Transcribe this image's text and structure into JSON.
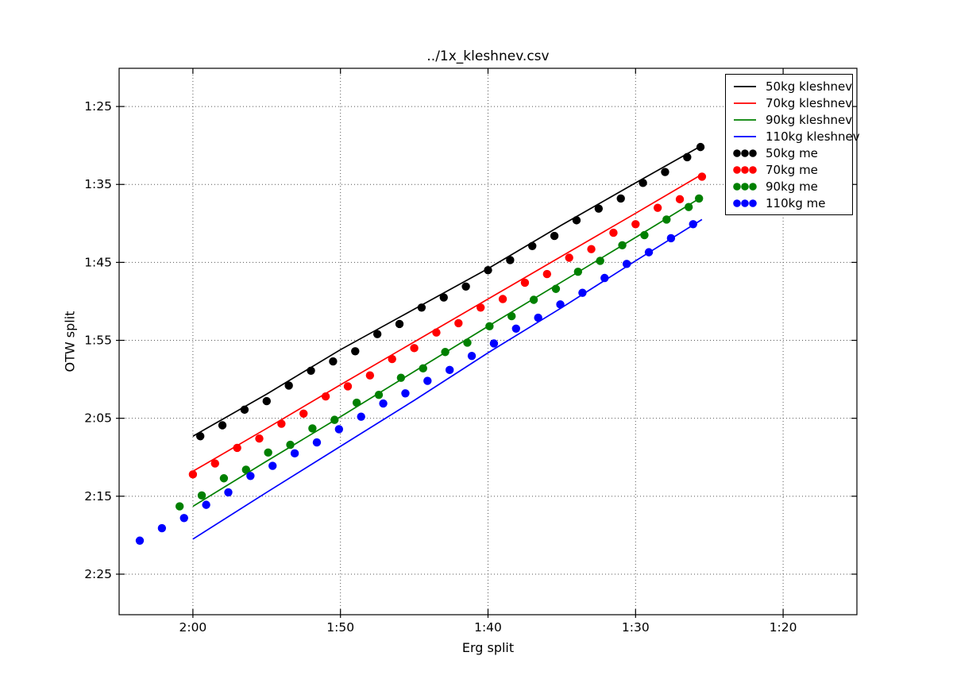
{
  "chart_data": {
    "type": "line+scatter",
    "title": "../1x_kleshnev.csv",
    "xlabel": "Erg split",
    "ylabel": "OTW split",
    "grid": "dotted",
    "legend_position": "upper right",
    "x_axis": {
      "reversed": true,
      "min_seconds": 125,
      "max_seconds": 75,
      "ticks": [
        {
          "label": "2:00",
          "seconds": 120
        },
        {
          "label": "1:50",
          "seconds": 110
        },
        {
          "label": "1:40",
          "seconds": 100
        },
        {
          "label": "1:30",
          "seconds": 90
        },
        {
          "label": "1:20",
          "seconds": 80
        }
      ]
    },
    "y_axis": {
      "increases_downward": true,
      "min_seconds": 80.1,
      "max_seconds": 150.2,
      "ticks": [
        {
          "label": "1:25",
          "seconds": 85
        },
        {
          "label": "1:35",
          "seconds": 95
        },
        {
          "label": "1:45",
          "seconds": 105
        },
        {
          "label": "1:55",
          "seconds": 115
        },
        {
          "label": "2:05",
          "seconds": 125
        },
        {
          "label": "2:15",
          "seconds": 135
        },
        {
          "label": "2:25",
          "seconds": 145
        }
      ]
    },
    "series": [
      {
        "name": "50kg kleshnev",
        "style": "line",
        "color": "#000000",
        "points": [
          [
            120,
            127.3
          ],
          [
            115,
            121.9
          ],
          [
            110,
            116.2
          ],
          [
            105,
            111.0
          ],
          [
            100,
            105.8
          ],
          [
            95,
            100.2
          ],
          [
            90,
            94.8
          ],
          [
            85.5,
            90.0
          ]
        ]
      },
      {
        "name": "70kg kleshnev",
        "style": "line",
        "color": "#ff0000",
        "points": [
          [
            120,
            131.8
          ],
          [
            115,
            126.3
          ],
          [
            110,
            120.7
          ],
          [
            105,
            115.2
          ],
          [
            100,
            109.7
          ],
          [
            95,
            104.2
          ],
          [
            90,
            98.7
          ],
          [
            85.5,
            93.7
          ]
        ]
      },
      {
        "name": "90kg kleshnev",
        "style": "line",
        "color": "#008000",
        "points": [
          [
            120,
            136.3
          ],
          [
            115,
            130.5
          ],
          [
            110,
            124.8
          ],
          [
            105,
            119.0
          ],
          [
            100,
            113.2
          ],
          [
            95,
            107.5
          ],
          [
            90,
            101.8
          ],
          [
            85.5,
            96.6
          ]
        ]
      },
      {
        "name": "110kg kleshnev",
        "style": "line",
        "color": "#0000ff",
        "points": [
          [
            120,
            140.5
          ],
          [
            115,
            134.5
          ],
          [
            110,
            128.6
          ],
          [
            105,
            122.7
          ],
          [
            100,
            116.6
          ],
          [
            95,
            110.8
          ],
          [
            90,
            104.8
          ],
          [
            85.5,
            99.5
          ]
        ]
      },
      {
        "name": "50kg me",
        "style": "scatter",
        "color": "#000000",
        "points": [
          [
            119.5,
            127.3
          ],
          [
            118,
            125.9
          ],
          [
            116.5,
            123.9
          ],
          [
            115,
            122.8
          ],
          [
            113.5,
            120.8
          ],
          [
            112,
            118.9
          ],
          [
            110.5,
            117.7
          ],
          [
            109,
            116.4
          ],
          [
            107.5,
            114.2
          ],
          [
            106,
            112.9
          ],
          [
            104.5,
            110.8
          ],
          [
            103,
            109.5
          ],
          [
            101.5,
            108.1
          ],
          [
            100,
            106.0
          ],
          [
            98.5,
            104.7
          ],
          [
            97,
            102.9
          ],
          [
            95.5,
            101.6
          ],
          [
            94,
            99.6
          ],
          [
            92.5,
            98.1
          ],
          [
            91,
            96.8
          ],
          [
            89.5,
            94.8
          ],
          [
            88,
            93.4
          ],
          [
            86.5,
            91.5
          ],
          [
            85.6,
            90.2
          ]
        ]
      },
      {
        "name": "70kg me",
        "style": "scatter",
        "color": "#ff0000",
        "points": [
          [
            120,
            132.2
          ],
          [
            118.5,
            130.8
          ],
          [
            117,
            128.8
          ],
          [
            115.5,
            127.6
          ],
          [
            114,
            125.7
          ],
          [
            112.5,
            124.4
          ],
          [
            111,
            122.2
          ],
          [
            109.5,
            120.9
          ],
          [
            108,
            119.5
          ],
          [
            106.5,
            117.4
          ],
          [
            105,
            116.0
          ],
          [
            103.5,
            114.0
          ],
          [
            102,
            112.8
          ],
          [
            100.5,
            110.8
          ],
          [
            99,
            109.7
          ],
          [
            97.5,
            107.6
          ],
          [
            96,
            106.5
          ],
          [
            94.5,
            104.4
          ],
          [
            93,
            103.3
          ],
          [
            91.5,
            101.2
          ],
          [
            90,
            100.1
          ],
          [
            88.5,
            98.0
          ],
          [
            87,
            96.9
          ],
          [
            85.5,
            94.0
          ]
        ]
      },
      {
        "name": "90kg me",
        "style": "scatter",
        "color": "#008000",
        "points": [
          [
            120.9,
            136.3
          ],
          [
            119.4,
            134.9
          ],
          [
            117.9,
            132.7
          ],
          [
            116.4,
            131.6
          ],
          [
            114.9,
            129.4
          ],
          [
            113.4,
            128.4
          ],
          [
            111.9,
            126.3
          ],
          [
            110.4,
            125.2
          ],
          [
            108.9,
            123.0
          ],
          [
            107.4,
            122.0
          ],
          [
            105.9,
            119.8
          ],
          [
            104.4,
            118.6
          ],
          [
            102.9,
            116.5
          ],
          [
            101.4,
            115.3
          ],
          [
            99.9,
            113.2
          ],
          [
            98.4,
            111.9
          ],
          [
            96.9,
            109.8
          ],
          [
            95.4,
            108.4
          ],
          [
            93.9,
            106.2
          ],
          [
            92.4,
            104.8
          ],
          [
            90.9,
            102.8
          ],
          [
            89.4,
            101.5
          ],
          [
            87.9,
            99.5
          ],
          [
            86.4,
            97.9
          ],
          [
            85.7,
            96.8
          ]
        ]
      },
      {
        "name": "110kg me",
        "style": "scatter",
        "color": "#0000ff",
        "points": [
          [
            123.6,
            140.7
          ],
          [
            122.1,
            139.1
          ],
          [
            120.6,
            137.8
          ],
          [
            119.1,
            136.1
          ],
          [
            117.6,
            134.5
          ],
          [
            116.1,
            132.4
          ],
          [
            114.6,
            131.1
          ],
          [
            113.1,
            129.5
          ],
          [
            111.6,
            128.1
          ],
          [
            110.1,
            126.4
          ],
          [
            108.6,
            124.8
          ],
          [
            107.1,
            123.1
          ],
          [
            105.6,
            121.8
          ],
          [
            104.1,
            120.2
          ],
          [
            102.6,
            118.8
          ],
          [
            101.1,
            117.0
          ],
          [
            99.6,
            115.4
          ],
          [
            98.1,
            113.5
          ],
          [
            96.6,
            112.1
          ],
          [
            95.1,
            110.4
          ],
          [
            93.6,
            108.9
          ],
          [
            92.1,
            107.0
          ],
          [
            90.6,
            105.2
          ],
          [
            89.1,
            103.7
          ],
          [
            87.6,
            101.9
          ],
          [
            86.1,
            100.1
          ]
        ]
      }
    ]
  }
}
